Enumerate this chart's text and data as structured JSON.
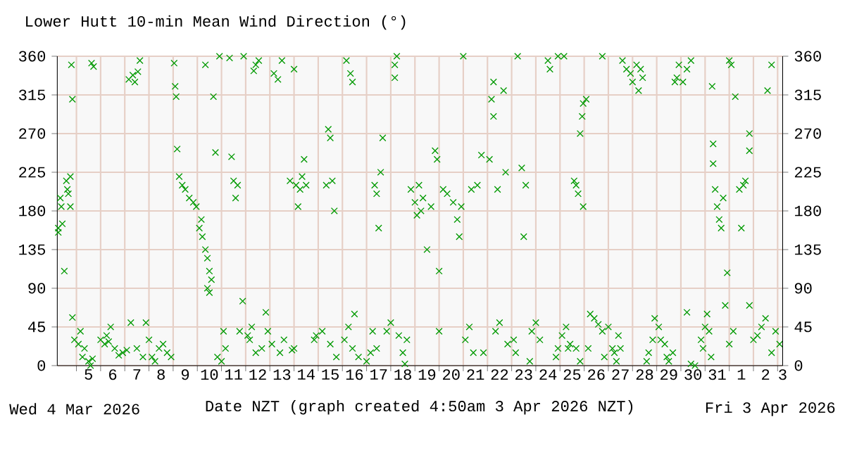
{
  "chart_data": {
    "type": "scatter",
    "title": "Lower Hutt 10-min Mean Wind Direction (°)",
    "xlabel": "Date NZT (graph created 4:50am 3 Apr 2026 NZT)",
    "annotations": [
      "Wed 4 Mar 2026",
      "Fri 3 Apr 2026"
    ],
    "xlim": [
      "2026-03-04T05:00",
      "2026-04-03T05:00"
    ],
    "xticks": [
      {
        "value": "2026-03-05",
        "label": null
      },
      {
        "value": "2026-03-06",
        "label": null
      },
      {
        "value": "2026-03-07",
        "label": null
      },
      {
        "value": "2026-03-08",
        "label": null
      },
      {
        "value": "2026-03-09",
        "label": null
      },
      {
        "value": "2026-03-10",
        "label": null
      },
      {
        "value": "2026-03-11",
        "label": null
      },
      {
        "value": "2026-03-12",
        "label": null
      },
      {
        "value": "2026-03-13",
        "label": null
      },
      {
        "value": "2026-03-14",
        "label": null
      },
      {
        "value": "2026-03-15",
        "label": null
      },
      {
        "value": "2026-03-16",
        "label": null
      },
      {
        "value": "2026-03-17",
        "label": null
      },
      {
        "value": "2026-03-18",
        "label": null
      },
      {
        "value": "2026-03-19",
        "label": null
      },
      {
        "value": "2026-03-20",
        "label": null
      },
      {
        "value": "2026-03-21",
        "label": null
      },
      {
        "value": "2026-03-22",
        "label": null
      },
      {
        "value": "2026-03-23",
        "label": null
      },
      {
        "value": "2026-03-24",
        "label": null
      },
      {
        "value": "2026-03-25",
        "label": null
      },
      {
        "value": "2026-03-26",
        "label": null
      },
      {
        "value": "2026-03-27",
        "label": null
      },
      {
        "value": "2026-03-28",
        "label": null
      },
      {
        "value": "2026-03-29",
        "label": null
      },
      {
        "value": "2026-03-30",
        "label": null
      },
      {
        "value": "2026-03-31",
        "label": null
      },
      {
        "value": "2026-04-01",
        "label": null
      },
      {
        "value": "2026-04-02",
        "label": null
      },
      {
        "value": "2026-04-03",
        "label": null
      },
      {
        "value": "2026-03-05T12:00",
        "label": "5"
      },
      {
        "value": "2026-03-06T12:00",
        "label": "6"
      },
      {
        "value": "2026-03-07T12:00",
        "label": "7"
      },
      {
        "value": "2026-03-08T12:00",
        "label": "8"
      },
      {
        "value": "2026-03-09T12:00",
        "label": "9"
      },
      {
        "value": "2026-03-10T12:00",
        "label": "10"
      },
      {
        "value": "2026-03-11T12:00",
        "label": "11"
      },
      {
        "value": "2026-03-12T12:00",
        "label": "12"
      },
      {
        "value": "2026-03-13T12:00",
        "label": "13"
      },
      {
        "value": "2026-03-14T12:00",
        "label": "14"
      },
      {
        "value": "2026-03-15T12:00",
        "label": "15"
      },
      {
        "value": "2026-03-16T12:00",
        "label": "16"
      },
      {
        "value": "2026-03-17T12:00",
        "label": "17"
      },
      {
        "value": "2026-03-18T12:00",
        "label": "18"
      },
      {
        "value": "2026-03-19T12:00",
        "label": "19"
      },
      {
        "value": "2026-03-20T12:00",
        "label": "20"
      },
      {
        "value": "2026-03-21T12:00",
        "label": "21"
      },
      {
        "value": "2026-03-22T12:00",
        "label": "22"
      },
      {
        "value": "2026-03-23T12:00",
        "label": "23"
      },
      {
        "value": "2026-03-24T12:00",
        "label": "24"
      },
      {
        "value": "2026-03-25T12:00",
        "label": "25"
      },
      {
        "value": "2026-03-26T12:00",
        "label": "26"
      },
      {
        "value": "2026-03-27T12:00",
        "label": "27"
      },
      {
        "value": "2026-03-28T12:00",
        "label": "28"
      },
      {
        "value": "2026-03-29T12:00",
        "label": "29"
      },
      {
        "value": "2026-03-30T12:00",
        "label": "30"
      },
      {
        "value": "2026-03-31T12:00",
        "label": "31"
      },
      {
        "value": "2026-04-01T12:00",
        "label": "1"
      },
      {
        "value": "2026-04-02T12:00",
        "label": "2"
      },
      {
        "value": "2026-04-03T05:00",
        "label": "3"
      }
    ],
    "ylim": [
      0,
      360
    ],
    "yticks": [
      0,
      45,
      90,
      135,
      180,
      225,
      270,
      315,
      360
    ],
    "y2lim": [
      0,
      360
    ],
    "y2ticks": [
      0,
      45,
      90,
      135,
      180,
      225,
      270,
      315,
      360
    ],
    "grid": true,
    "marker": "cross",
    "series": [
      {
        "color": "#009900",
        "x": [
          "2026-03-04T06:00",
          "2026-03-04T06:00",
          "2026-03-04T08:00",
          "2026-03-04T09:00",
          "2026-03-04T10:00",
          "2026-03-04T12:00",
          "2026-03-04T14:00",
          "2026-03-04T15:00",
          "2026-03-04T16:00",
          "2026-03-04T18:00",
          "2026-03-04T18:00",
          "2026-03-04T19:00",
          "2026-03-04T20:00",
          "2026-03-04T20:00",
          "2026-03-04T22:00",
          "2026-03-05T02:00",
          "2026-03-05T04:00",
          "2026-03-05T06:00",
          "2026-03-05T08:00",
          "2026-03-05T15:00",
          "2026-03-05T17:00",
          "2026-03-05T12:00",
          "2026-03-05T14:00",
          "2026-03-05T16:00",
          "2026-03-06T00:00",
          "2026-03-06T04:00",
          "2026-03-06T06:00",
          "2026-03-06T08:00",
          "2026-03-06T10:00",
          "2026-03-06T14:00",
          "2026-03-06T18:00",
          "2026-03-06T22:00",
          "2026-03-07T02:00",
          "2026-03-07T06:00",
          "2026-03-07T04:00",
          "2026-03-07T08:00",
          "2026-03-07T10:00",
          "2026-03-07T13:00",
          "2026-03-07T15:00",
          "2026-03-07T12:00",
          "2026-03-07T18:00",
          "2026-03-07T21:00",
          "2026-03-08T00:00",
          "2026-03-08T03:00",
          "2026-03-08T06:00",
          "2026-03-08T10:00",
          "2026-03-08T14:00",
          "2026-03-08T18:00",
          "2026-03-08T22:00",
          "2026-03-09T01:00",
          "2026-03-09T02:00",
          "2026-03-09T03:00",
          "2026-03-09T04:00",
          "2026-03-09T06:00",
          "2026-03-09T09:00",
          "2026-03-09T12:00",
          "2026-03-09T16:00",
          "2026-03-09T20:00",
          "2026-03-09T23:00",
          "2026-03-10T02:00",
          "2026-03-10T04:00",
          "2026-03-10T05:00",
          "2026-03-10T08:00",
          "2026-03-10T10:00",
          "2026-03-10T12:00",
          "2026-03-10T14:00",
          "2026-03-10T10:00",
          "2026-03-10T12:00",
          "2026-03-10T08:00",
          "2026-03-10T16:00",
          "2026-03-10T18:00",
          "2026-03-10T22:00",
          "2026-03-10T20:00",
          "2026-03-11T02:00",
          "2026-03-11T04:00",
          "2026-03-11T00:00",
          "2026-03-11T08:00",
          "2026-03-11T10:00",
          "2026-03-11T12:00",
          "2026-03-11T14:00",
          "2026-03-11T16:00",
          "2026-03-11T18:00",
          "2026-03-11T21:00",
          "2026-03-11T22:00",
          "2026-03-12T02:00",
          "2026-03-12T04:00",
          "2026-03-12T06:00",
          "2026-03-12T08:00",
          "2026-03-12T10:00",
          "2026-03-12T13:00",
          "2026-03-12T10:00",
          "2026-03-12T16:00",
          "2026-03-12T20:00",
          "2026-03-12T22:00",
          "2026-03-13T02:00",
          "2026-03-13T04:00",
          "2026-03-13T08:00",
          "2026-03-13T12:00",
          "2026-03-13T10:00",
          "2026-03-13T14:00",
          "2026-03-13T20:00",
          "2026-03-13T22:00",
          "2026-03-14T00:00",
          "2026-03-14T02:00",
          "2026-03-14T06:00",
          "2026-03-14T08:00",
          "2026-03-14T10:00",
          "2026-03-14T12:00",
          "2026-03-14T04:00",
          "2026-03-14T00:00",
          "2026-03-14T20:00",
          "2026-03-14T22:00",
          "2026-03-15T04:00",
          "2026-03-15T10:00",
          "2026-03-15T12:00",
          "2026-03-15T08:00",
          "2026-03-15T14:00",
          "2026-03-15T16:00",
          "2026-03-15T12:00",
          "2026-03-15T18:00",
          "2026-03-16T04:00",
          "2026-03-16T08:00",
          "2026-03-16T10:00",
          "2026-03-16T02:00",
          "2026-03-16T06:00",
          "2026-03-16T10:00",
          "2026-03-16T12:00",
          "2026-03-16T16:00",
          "2026-03-17T00:00",
          "2026-03-17T04:00",
          "2026-03-17T06:00",
          "2026-03-17T10:00",
          "2026-03-17T08:00",
          "2026-03-17T10:00",
          "2026-03-17T12:00",
          "2026-03-17T14:00",
          "2026-03-17T16:00",
          "2026-03-17T20:00",
          "2026-03-18T00:00",
          "2026-03-18T04:00",
          "2026-03-18T06:00",
          "2026-03-18T04:00",
          "2026-03-18T08:00",
          "2026-03-18T12:00",
          "2026-03-18T14:00",
          "2026-03-18T16:00",
          "2026-03-18T20:00",
          "2026-03-19T00:00",
          "2026-03-19T02:00",
          "2026-03-19T04:00",
          "2026-03-19T06:00",
          "2026-03-19T08:00",
          "2026-03-19T12:00",
          "2026-03-19T16:00",
          "2026-03-19T20:00",
          "2026-03-19T22:00",
          "2026-03-20T00:00",
          "2026-03-20T00:00",
          "2026-03-20T04:00",
          "2026-03-20T08:00",
          "2026-03-20T14:00",
          "2026-03-20T18:00",
          "2026-03-20T20:00",
          "2026-03-20T22:00",
          "2026-03-21T00:00",
          "2026-03-21T02:00",
          "2026-03-21T06:00",
          "2026-03-21T10:00",
          "2026-03-21T08:00",
          "2026-03-21T14:00",
          "2026-03-21T18:00",
          "2026-03-21T20:00",
          "2026-03-22T02:00",
          "2026-03-22T04:00",
          "2026-03-22T06:00",
          "2026-03-22T06:00",
          "2026-03-22T10:00",
          "2026-03-22T08:00",
          "2026-03-22T12:00",
          "2026-03-22T16:00",
          "2026-03-22T18:00",
          "2026-03-22T20:00",
          "2026-03-23T02:00",
          "2026-03-23T04:00",
          "2026-03-23T06:00",
          "2026-03-23T10:00",
          "2026-03-23T12:00",
          "2026-03-23T14:00",
          "2026-03-23T18:00",
          "2026-03-23T20:00",
          "2026-03-24T00:00",
          "2026-03-24T04:00",
          "2026-03-24T12:00",
          "2026-03-24T14:00",
          "2026-03-24T20:00",
          "2026-03-24T22:00",
          "2026-03-24T22:00",
          "2026-03-25T04:00",
          "2026-03-25T06:00",
          "2026-03-25T02:00",
          "2026-03-25T08:00",
          "2026-03-25T10:00",
          "2026-03-25T14:00",
          "2026-03-25T16:00",
          "2026-03-25T18:00",
          "2026-03-25T20:00",
          "2026-03-25T22:00",
          "2026-03-25T23:00",
          "2026-03-25T23:00",
          "2026-03-25T16:00",
          "2026-03-25T20:00",
          "2026-03-26T02:00",
          "2026-03-26T04:00",
          "2026-03-26T06:00",
          "2026-03-26T10:00",
          "2026-03-26T14:00",
          "2026-03-26T18:00",
          "2026-03-26T20:00",
          "2026-03-26T18:00",
          "2026-03-27T00:00",
          "2026-03-27T04:00",
          "2026-03-27T06:00",
          "2026-03-27T08:00",
          "2026-03-27T10:00",
          "2026-03-27T12:00",
          "2026-03-27T14:00",
          "2026-03-27T18:00",
          "2026-03-27T22:00",
          "2026-03-28T00:00",
          "2026-03-28T04:00",
          "2026-03-28T06:00",
          "2026-03-28T08:00",
          "2026-03-28T10:00",
          "2026-03-28T14:00",
          "2026-03-28T16:00",
          "2026-03-28T20:00",
          "2026-03-28T22:00",
          "2026-03-29T02:00",
          "2026-03-29T04:00",
          "2026-03-29T08:00",
          "2026-03-29T10:00",
          "2026-03-29T12:00",
          "2026-03-29T18:00",
          "2026-03-29T20:00",
          "2026-03-29T22:00",
          "2026-03-29T16:00",
          "2026-03-30T02:00",
          "2026-03-30T06:00",
          "2026-03-30T10:00",
          "2026-03-30T06:00",
          "2026-03-30T10:00",
          "2026-03-30T14:00",
          "2026-03-30T20:00",
          "2026-03-30T22:00",
          "2026-03-31T00:00",
          "2026-03-31T02:00",
          "2026-03-31T04:00",
          "2026-03-31T06:00",
          "2026-03-31T07:00",
          "2026-03-31T08:00",
          "2026-03-31T08:00",
          "2026-03-31T10:00",
          "2026-03-31T12:00",
          "2026-03-31T14:00",
          "2026-03-31T16:00",
          "2026-03-31T18:00",
          "2026-03-31T20:00",
          "2026-03-31T22:00",
          "2026-04-01T00:00",
          "2026-04-01T02:00",
          "2026-04-01T00:00",
          "2026-04-01T04:00",
          "2026-04-01T06:00",
          "2026-04-01T10:00",
          "2026-04-01T12:00",
          "2026-04-01T14:00",
          "2026-04-01T16:00",
          "2026-04-01T20:00",
          "2026-04-01T20:00",
          "2026-04-01T20:00",
          "2026-04-02T00:00",
          "2026-04-02T04:00",
          "2026-04-02T08:00",
          "2026-04-02T12:00",
          "2026-04-02T14:00",
          "2026-04-02T18:00",
          "2026-04-02T18:00",
          "2026-04-02T22:00",
          "2026-04-03T02:00"
        ],
        "values": [
          155,
          160,
          195,
          185,
          165,
          110,
          215,
          205,
          200,
          185,
          220,
          350,
          310,
          56,
          30,
          25,
          40,
          10,
          20,
          352,
          348,
          5,
          0,
          8,
          30,
          25,
          35,
          28,
          45,
          20,
          12,
          15,
          18,
          50,
          333,
          338,
          330,
          342,
          355,
          20,
          10,
          50,
          30,
          10,
          5,
          20,
          25,
          15,
          10,
          352,
          325,
          313,
          252,
          220,
          210,
          205,
          195,
          190,
          185,
          160,
          170,
          150,
          135,
          125,
          110,
          100,
          90,
          85,
          350,
          313,
          248,
          360,
          10,
          40,
          20,
          5,
          358,
          243,
          215,
          195,
          210,
          40,
          75,
          360,
          35,
          30,
          45,
          343,
          350,
          355,
          15,
          20,
          62,
          40,
          25,
          340,
          333,
          355,
          15,
          30,
          215,
          18,
          345,
          210,
          205,
          220,
          240,
          210,
          185,
          20,
          30,
          35,
          40,
          275,
          265,
          210,
          215,
          180,
          25,
          10,
          355,
          340,
          330,
          30,
          45,
          20,
          60,
          10,
          5,
          15,
          40,
          20,
          210,
          200,
          160,
          225,
          265,
          40,
          50,
          350,
          360,
          335,
          35,
          15,
          2,
          30,
          205,
          190,
          175,
          210,
          180,
          195,
          135,
          185,
          250,
          240,
          40,
          110,
          205,
          200,
          190,
          170,
          150,
          185,
          360,
          30,
          45,
          15,
          205,
          210,
          245,
          15,
          240,
          310,
          290,
          330,
          205,
          40,
          50,
          320,
          225,
          25,
          30,
          15,
          360,
          230,
          150,
          210,
          5,
          40,
          50,
          30,
          355,
          345,
          10,
          20,
          360,
          360,
          45,
          35,
          20,
          25,
          215,
          210,
          200,
          270,
          290,
          305,
          185,
          20,
          5,
          310,
          20,
          60,
          55,
          48,
          40,
          10,
          360,
          45,
          20,
          15,
          5,
          35,
          20,
          355,
          345,
          340,
          330,
          350,
          320,
          345,
          335,
          5,
          15,
          30,
          55,
          45,
          30,
          25,
          10,
          5,
          330,
          335,
          350,
          15,
          330,
          345,
          355,
          62,
          2,
          0,
          30,
          20,
          45,
          60,
          40,
          10,
          325,
          258,
          235,
          205,
          185,
          170,
          160,
          195,
          70,
          108,
          355,
          350,
          25,
          40,
          313,
          205,
          160,
          210,
          215,
          270,
          250,
          70,
          30,
          35,
          45,
          55,
          320,
          350,
          15,
          40,
          25
        ]
      }
    ]
  }
}
